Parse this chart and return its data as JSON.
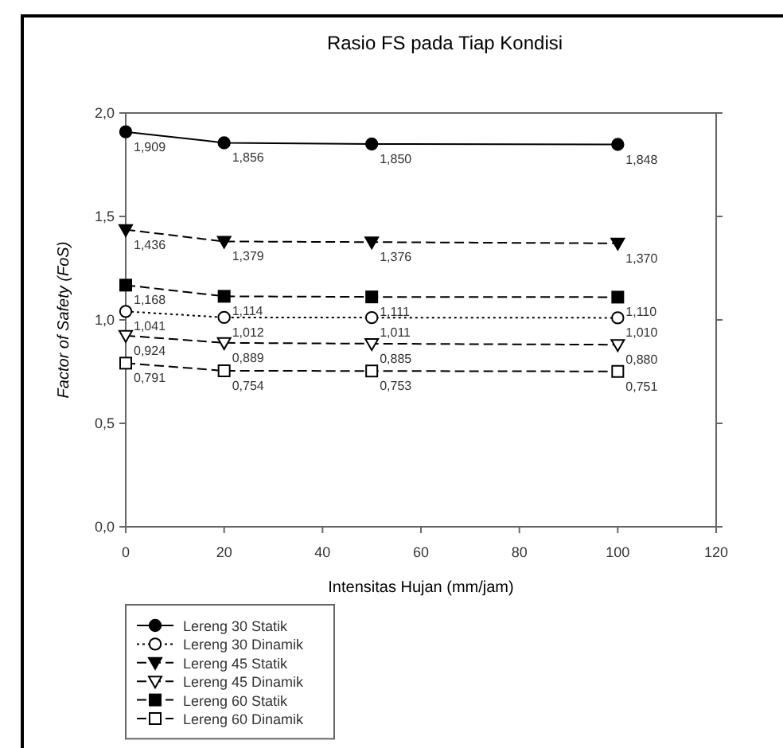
{
  "chart_data": {
    "type": "line",
    "title": "Rasio FS pada Tiap Kondisi",
    "xlabel": "Intensitas Hujan (mm/jam)",
    "ylabel": "Factor of Safety (FoS)",
    "x": [
      0,
      20,
      50,
      100
    ],
    "xlim": [
      0,
      120
    ],
    "xticks": [
      0,
      20,
      40,
      60,
      80,
      100,
      120
    ],
    "ylim": [
      0,
      2
    ],
    "yticks": [
      {
        "value": 0,
        "label": "0,0"
      },
      {
        "value": 0.5,
        "label": "0,5"
      },
      {
        "value": 1,
        "label": "1,0"
      },
      {
        "value": 1.5,
        "label": "1,5"
      },
      {
        "value": 2,
        "label": "2,0"
      }
    ],
    "grid": false,
    "legend": "bottom left",
    "series": [
      {
        "name": "Lereng 30 Statik",
        "color": "#000000",
        "marker": "circle",
        "line_style": "solid",
        "values": [
          1.909,
          1.856,
          1.85,
          1.848
        ],
        "value_labels": [
          "1,909",
          "1,856",
          "1,850",
          "1,848"
        ]
      },
      {
        "name": "Lereng 30 Dinamik",
        "color": "#000000",
        "marker": "circle-open",
        "line_style": "dotted",
        "values": [
          1.041,
          1.012,
          1.011,
          1.01
        ],
        "value_labels": [
          "1,041",
          "1,012",
          "1,011",
          "1,010"
        ]
      },
      {
        "name": "Lereng 45 Statik",
        "color": "#000000",
        "marker": "triangle-down",
        "line_style": "dashed",
        "values": [
          1.436,
          1.379,
          1.376,
          1.37
        ],
        "value_labels": [
          "1,436",
          "1,379",
          "1,376",
          "1,370"
        ]
      },
      {
        "name": "Lereng 45 Dinamik",
        "color": "#000000",
        "marker": "triangle-down-open",
        "line_style": "dashed",
        "values": [
          0.924,
          0.889,
          0.885,
          0.88
        ],
        "value_labels": [
          "0,924",
          "0,889",
          "0,885",
          "0,880"
        ]
      },
      {
        "name": "Lereng 60 Statik",
        "color": "#000000",
        "marker": "square",
        "line_style": "dashed",
        "values": [
          1.168,
          1.114,
          1.111,
          1.11
        ],
        "value_labels": [
          "1,168",
          "1,114",
          "1,111",
          "1,110"
        ]
      },
      {
        "name": "Lereng 60 Dinamik",
        "color": "#000000",
        "marker": "square-open",
        "line_style": "dashed",
        "values": [
          0.791,
          0.754,
          0.753,
          0.751
        ],
        "value_labels": [
          "0,791",
          "0,754",
          "0,753",
          "0,751"
        ]
      }
    ]
  }
}
